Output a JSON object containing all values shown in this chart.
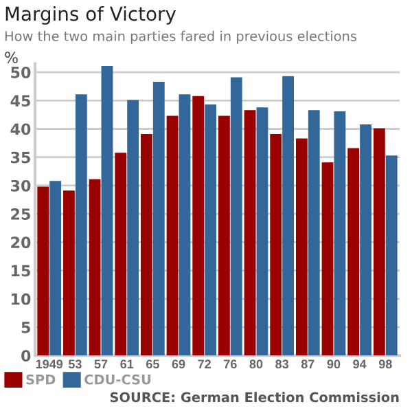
{
  "chart_data": {
    "type": "bar",
    "title": "Margins of Victory",
    "subtitle": "How the two main parties fared in previous elections",
    "ylabel": "%",
    "categories": [
      "1949",
      "53",
      "57",
      "61",
      "65",
      "69",
      "72",
      "76",
      "80",
      "83",
      "87",
      "90",
      "94",
      "98"
    ],
    "series": [
      {
        "name": "SPD",
        "color": "#990000",
        "values": [
          29.8,
          29.1,
          31.1,
          35.8,
          39.1,
          42.3,
          45.8,
          42.3,
          43.3,
          39.1,
          38.3,
          34.1,
          36.6,
          40.1
        ]
      },
      {
        "name": "CDU-CSU",
        "color": "#336699",
        "values": [
          30.8,
          46.1,
          51.1,
          45.1,
          48.3,
          46.1,
          44.3,
          49.1,
          43.8,
          49.3,
          43.3,
          43.1,
          40.8,
          35.3
        ]
      }
    ],
    "ylim": [
      0,
      51.5
    ],
    "yticks": [
      0,
      5,
      10,
      15,
      20,
      25,
      30,
      35,
      40,
      45,
      50
    ],
    "grid": "y",
    "legend": "bottom left",
    "annotations": [
      "SOURCE: German Election Commission"
    ]
  }
}
